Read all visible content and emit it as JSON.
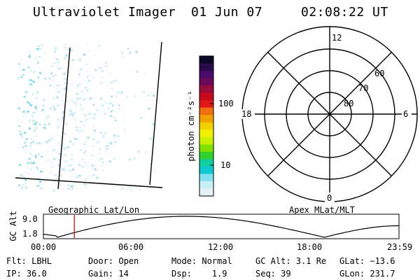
{
  "header": {
    "instrument": "Ultraviolet Imager",
    "date": "01 Jun 07",
    "time": "02:08:22 UT"
  },
  "map_panel": {
    "caption": "Geographic Lat/Lon"
  },
  "colorbar": {
    "units": "photon cm⁻²s⁻¹",
    "tick_100": "100",
    "tick_10": "10",
    "colors": [
      "#0a0a28",
      "#2a0a4a",
      "#4a0a6a",
      "#6a0a5a",
      "#9a0a3a",
      "#c80a1a",
      "#e01818",
      "#f07010",
      "#f0a000",
      "#f0d000",
      "#f0f000",
      "#c8f000",
      "#80e000",
      "#30d030",
      "#10d0a0",
      "#10c8d0",
      "#80e0f0",
      "#c8eef6",
      "#e6f2f6"
    ]
  },
  "polar": {
    "caption": "Apex MLat/MLT",
    "mlt_top": "12",
    "mlt_left": "18",
    "mlt_right": "6",
    "mlt_bottom": "0",
    "lat_60": "60",
    "lat_70": "70",
    "lat_80": "80"
  },
  "altitude_plot": {
    "ylabel": "GC Alt",
    "ymax": "9.0",
    "ymin": "1.8",
    "x_ticks": [
      "00:00",
      "06:00",
      "12:00",
      "18:00",
      "23:59"
    ],
    "current_time_fraction": 0.087
  },
  "status": {
    "flt": "Flt: LBHL",
    "door": "Door: Open",
    "mode": "Mode: Normal",
    "gc_alt": "GC Alt: 3.1 Re",
    "glat": "GLat: −13.6",
    "ip": "IP: 36.0",
    "gain": "Gain: 14",
    "dsp": "Dsp:    1.9",
    "seq": "Seq: 39",
    "glon": "GLon: 231.7"
  }
}
